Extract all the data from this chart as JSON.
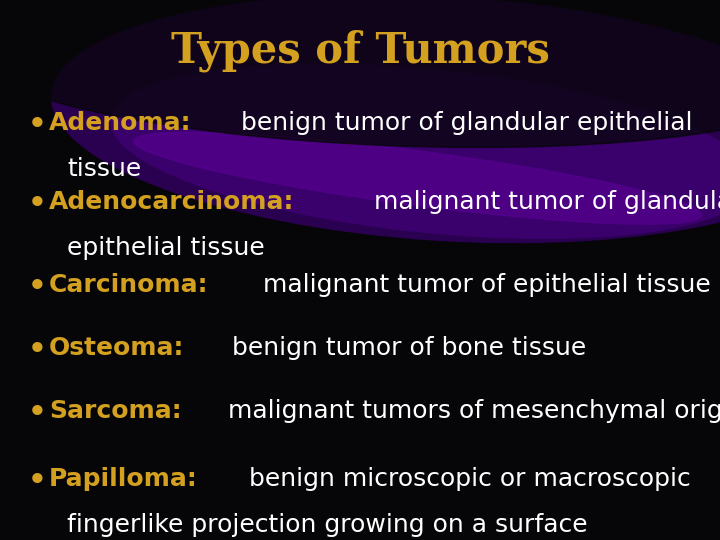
{
  "title": "Types of Tumors",
  "title_color": "#D4A020",
  "title_fontsize": 30,
  "background_color": "#060608",
  "bullet_color": "#D4A020",
  "text_color": "#FFFFFF",
  "highlight_color": "#D4A020",
  "bullet_fontsize": 18,
  "bullets": [
    {
      "term": "Adenoma:",
      "definition": " benign tumor of glandular epithelial",
      "continuation": "tissue"
    },
    {
      "term": "Adenocarcinoma:",
      "definition": " malignant tumor of glandular",
      "continuation": "epithelial tissue"
    },
    {
      "term": "Carcinoma:",
      "definition": " malignant tumor of epithelial tissue",
      "continuation": ""
    },
    {
      "term": "Osteoma:",
      "definition": " benign tumor of bone tissue",
      "continuation": ""
    },
    {
      "term": "Sarcoma:",
      "definition": " malignant tumors of mesenchymal origin",
      "continuation": ""
    },
    {
      "term": "Papilloma:",
      "definition": " benign microscopic or macroscopic",
      "continuation": "fingerlike projection growing on a surface"
    }
  ],
  "figsize": [
    7.2,
    5.4
  ],
  "dpi": 100
}
